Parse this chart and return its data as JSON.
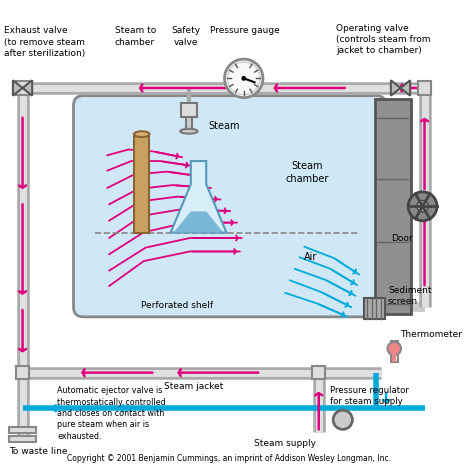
{
  "copyright": "Copyright © 2001 Benjamin Cummings, an imprint of Addison Wesley Longman, Inc.",
  "bg_color": "#ffffff",
  "chamber_fill": "#d0e8f5",
  "chamber_stroke": "#888888",
  "pipe_color": "#cccccc",
  "door_color": "#888888",
  "steam_arrow_color": "#e0007f",
  "air_arrow_color": "#00aadd",
  "labels": {
    "exhaust_valve": "Exhaust valve\n(to remove steam\nafter sterilization)",
    "steam_to_chamber": "Steam to\nchamber",
    "safety_valve": "Safety\nvalve",
    "pressure_gauge": "Pressure gauge",
    "operating_valve": "Operating valve\n(controls steam from\njacket to chamber)",
    "steam_label": "Steam",
    "steam_chamber": "Steam\nchamber",
    "air_label": "Air",
    "perforated_shelf": "Perforated shelf",
    "steam_jacket": "Steam jacket",
    "sediment_screen": "Sediment\nscreen",
    "thermometer": "Thermometer",
    "door_label": "Door",
    "auto_ejector": "Automatic ejector valve is\nthermostatically controlled\nand closes on contact with\npure steam when air is\nexhausted.",
    "pressure_regulator": "Pressure regulator\nfor steam supply",
    "steam_supply": "Steam supply",
    "waste_line": "To waste line"
  }
}
